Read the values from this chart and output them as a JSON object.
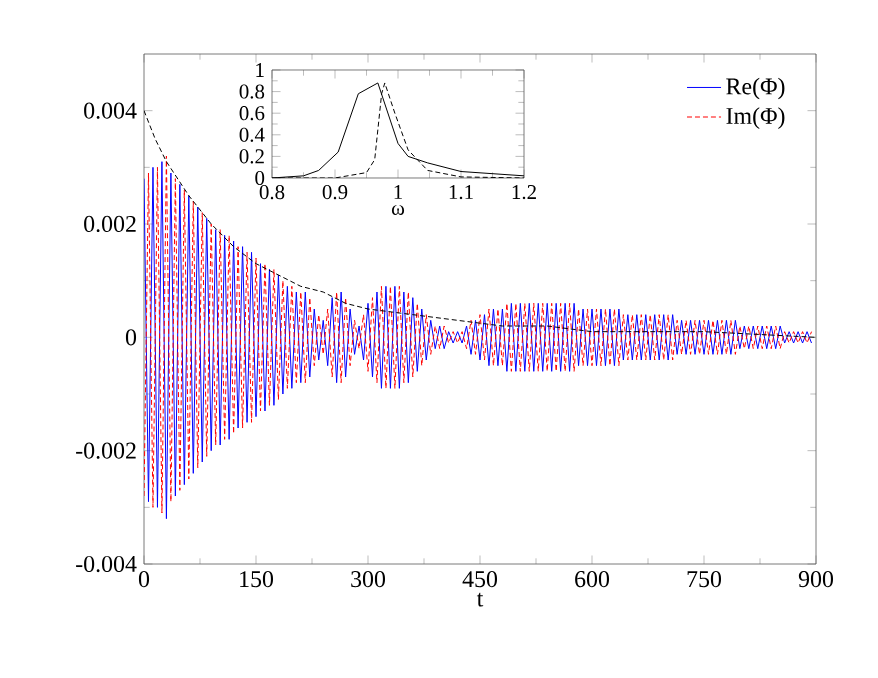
{
  "chart_data": [
    {
      "type": "line",
      "xlabel": "t",
      "xlim": [
        0,
        900
      ],
      "xticks": [
        0,
        150,
        300,
        450,
        600,
        750,
        900
      ],
      "ylim": [
        -0.004,
        0.005
      ],
      "yticks": [
        -0.004,
        -0.002,
        0,
        0.002,
        0.004
      ],
      "legend": "top right",
      "marker": "none",
      "x": [
        0,
        6,
        12,
        18,
        24,
        30,
        36,
        42,
        48,
        54,
        60,
        66,
        72,
        78,
        84,
        90,
        96,
        102,
        108,
        114,
        120,
        126,
        132,
        138,
        144,
        150,
        156,
        162,
        168,
        174,
        180,
        186,
        192,
        198,
        204,
        210,
        216,
        222,
        228,
        234,
        240,
        246,
        252,
        258,
        264,
        270,
        276,
        282,
        288,
        294,
        300,
        306,
        312,
        318,
        324,
        330,
        336,
        342,
        348,
        354,
        360,
        366,
        372,
        378,
        384,
        390,
        396,
        402,
        408,
        414,
        420,
        426,
        432,
        438,
        444,
        450,
        456,
        462,
        468,
        474,
        480,
        486,
        492,
        498,
        504,
        510,
        516,
        522,
        528,
        534,
        540,
        546,
        552,
        558,
        564,
        570,
        576,
        582,
        588,
        594,
        600,
        606,
        612,
        618,
        624,
        630,
        636,
        642,
        648,
        654,
        660,
        666,
        672,
        678,
        684,
        690,
        696,
        702,
        708,
        714,
        720,
        726,
        732,
        738,
        744,
        750,
        756,
        762,
        768,
        774,
        780,
        786,
        792,
        798,
        804,
        810,
        816,
        822,
        828,
        834,
        840,
        846,
        852,
        858,
        864,
        870,
        876,
        882,
        888,
        894
      ],
      "series": [
        {
          "name": "Re(Φ)",
          "color": "#0000ff",
          "line_style": "solid",
          "values": [
            0.0028,
            -0.0029,
            0.003,
            -0.003,
            0.0031,
            -0.0032,
            0.0029,
            -0.0028,
            0.0027,
            -0.0026,
            0.0025,
            -0.0024,
            0.0023,
            -0.0022,
            0.0021,
            -0.002,
            0.0019,
            -0.0019,
            0.0018,
            -0.0018,
            0.0017,
            -0.0016,
            0.0016,
            -0.0015,
            0.0015,
            -0.0014,
            0.0013,
            -0.0013,
            0.0012,
            -0.0012,
            0.0011,
            -0.001,
            0.0009,
            -0.0009,
            0.0008,
            -0.0008,
            0.0008,
            -0.0007,
            0.0005,
            -0.0004,
            0.0003,
            -0.0005,
            0.0007,
            -0.0008,
            0.0008,
            -0.0007,
            0.0005,
            -0.0003,
            0.0002,
            -0.0004,
            0.0006,
            -0.0007,
            0.0008,
            -0.0009,
            0.0009,
            -0.0009,
            0.0009,
            -0.0009,
            0.0008,
            -0.0008,
            0.0007,
            -0.0006,
            0.0005,
            -0.0004,
            0.0003,
            -0.0002,
            0.0002,
            -0.0002,
            0.0001,
            -0.0001,
            0.0001,
            -0.0001,
            0.0002,
            -0.0003,
            0.0003,
            -0.0004,
            0.0004,
            -0.0005,
            0.0005,
            -0.0005,
            0.0005,
            -0.0006,
            0.0006,
            -0.0006,
            0.0006,
            -0.0006,
            0.0006,
            -0.0006,
            0.0006,
            -0.0006,
            0.0006,
            -0.0006,
            0.0006,
            -0.0006,
            0.0006,
            -0.0006,
            0.0006,
            -0.0005,
            0.0005,
            -0.0005,
            0.0005,
            -0.0005,
            0.0005,
            -0.0005,
            0.0005,
            -0.0005,
            0.0005,
            -0.0004,
            0.0004,
            -0.0004,
            0.0004,
            -0.0004,
            0.0004,
            -0.0004,
            0.0004,
            -0.0004,
            0.0004,
            -0.0004,
            0.0004,
            -0.0003,
            0.0003,
            -0.0003,
            0.0003,
            -0.0003,
            0.0003,
            -0.0003,
            0.0003,
            -0.0003,
            0.0003,
            -0.0003,
            0.0003,
            -0.0003,
            0.0003,
            -0.0002,
            0.0002,
            -0.0002,
            0.0002,
            -0.0002,
            0.0002,
            -0.0002,
            0.0002,
            -0.0002,
            0.0002,
            -0.0001,
            0.0001,
            -0.0001,
            0.0001,
            -0.0001,
            0.0001,
            -0.0001
          ]
        },
        {
          "name": "Im(Φ)",
          "color": "#ff0000",
          "line_style": "dashed",
          "values": [
            -0.0028,
            0.0029,
            -0.003,
            0.003,
            -0.0031,
            0.0032,
            -0.0029,
            0.0028,
            -0.0027,
            0.0026,
            -0.0025,
            0.0024,
            -0.0023,
            0.0022,
            -0.0021,
            0.002,
            -0.0019,
            0.0019,
            -0.0018,
            0.0018,
            -0.0017,
            0.0016,
            -0.0016,
            0.0015,
            -0.0015,
            0.0014,
            -0.0013,
            0.0013,
            -0.0012,
            0.0012,
            -0.0011,
            0.001,
            -0.0009,
            0.0009,
            -0.0008,
            0.0008,
            -0.0008,
            0.0007,
            -0.0005,
            0.0004,
            -0.0003,
            0.0005,
            -0.0007,
            0.0008,
            -0.0008,
            0.0007,
            -0.0005,
            0.0003,
            -0.0002,
            0.0004,
            -0.0006,
            0.0007,
            -0.0008,
            0.0009,
            -0.0009,
            0.0009,
            -0.0009,
            0.0009,
            -0.0008,
            0.0008,
            -0.0007,
            0.0006,
            -0.0005,
            0.0004,
            -0.0003,
            0.0002,
            -0.0002,
            0.0002,
            -0.0001,
            0.0001,
            -0.0001,
            0.0001,
            -0.0002,
            0.0003,
            -0.0003,
            0.0004,
            -0.0004,
            0.0005,
            -0.0005,
            0.0005,
            -0.0005,
            0.0006,
            -0.0006,
            0.0006,
            -0.0006,
            0.0006,
            -0.0006,
            0.0006,
            -0.0006,
            0.0006,
            -0.0006,
            0.0006,
            -0.0006,
            0.0006,
            -0.0006,
            0.0006,
            -0.0006,
            0.0005,
            -0.0005,
            0.0005,
            -0.0005,
            0.0005,
            -0.0005,
            0.0005,
            -0.0005,
            0.0005,
            -0.0005,
            0.0004,
            -0.0004,
            0.0004,
            -0.0004,
            0.0004,
            -0.0004,
            0.0004,
            -0.0004,
            0.0004,
            -0.0004,
            0.0004,
            -0.0004,
            0.0003,
            -0.0003,
            0.0003,
            -0.0003,
            0.0003,
            -0.0003,
            0.0003,
            -0.0003,
            0.0003,
            -0.0003,
            0.0003,
            -0.0003,
            0.0003,
            -0.0003,
            0.0002,
            -0.0002,
            0.0002,
            -0.0002,
            0.0002,
            -0.0002,
            0.0002,
            -0.0002,
            0.0002,
            -0.0002,
            0.0001,
            -0.0001,
            0.0001,
            -0.0001,
            0.0001,
            -0.0001,
            0.0001
          ]
        },
        {
          "color": "#000000",
          "line_style": "dashed",
          "x": [
            0,
            15,
            30,
            45,
            60,
            90,
            120,
            150,
            180,
            210,
            240,
            270,
            300,
            360,
            420,
            480,
            540,
            600,
            750,
            900
          ],
          "values": [
            0.004,
            0.0035,
            0.0031,
            0.0028,
            0.0025,
            0.002,
            0.0016,
            0.0013,
            0.0011,
            0.0009,
            0.0008,
            0.0006,
            0.0005,
            0.0004,
            0.0003,
            0.0002,
            0.0002,
            0.0001,
            0.0001,
            0
          ]
        }
      ]
    },
    {
      "type": "line",
      "xlabel": "ω",
      "xlim": [
        0.8,
        1.2
      ],
      "xticks": [
        0.8,
        0.9,
        1,
        1.1,
        1.2
      ],
      "ylim": [
        0,
        1
      ],
      "yticks": [
        0,
        0.2,
        0.4,
        0.6,
        0.8,
        1
      ],
      "marker": "none",
      "series": [
        {
          "color": "#000000",
          "line_style": "solid",
          "x": [
            0.8,
            0.85,
            0.874,
            0.905,
            0.937,
            0.968,
            1.0,
            1.016,
            1.047,
            1.1,
            1.2
          ],
          "values": [
            0,
            0.02,
            0.07,
            0.24,
            0.78,
            0.88,
            0.32,
            0.2,
            0.14,
            0.06,
            0.02
          ]
        },
        {
          "color": "#000000",
          "line_style": "dashed",
          "x": [
            0.8,
            0.9,
            0.95,
            0.963,
            0.974,
            0.979,
            0.995,
            1.016,
            1.047,
            1.1,
            1.2
          ],
          "values": [
            0,
            0,
            0.05,
            0.17,
            0.78,
            0.88,
            0.6,
            0.26,
            0.07,
            0.01,
            0
          ]
        }
      ]
    }
  ]
}
